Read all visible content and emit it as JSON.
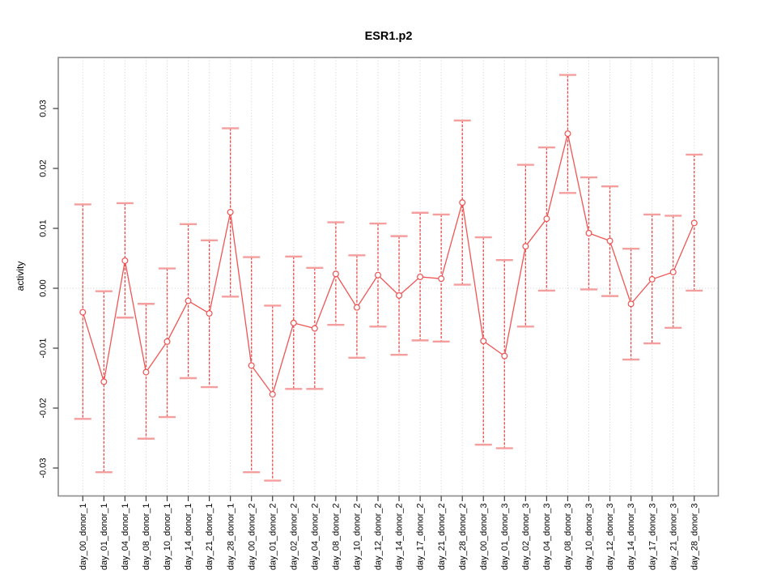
{
  "chart_data": {
    "type": "line",
    "title": "ESR1.p2",
    "xlabel": "",
    "ylabel": "activity",
    "ylim": [
      -0.0347,
      0.0385
    ],
    "grid": "vertical dotted line per category, horizontal dotted line at zero",
    "legend": "none",
    "marker": "open-circle",
    "error_bars": "dashed vertical with solid caps",
    "yticks": [
      0.03,
      0.02,
      0.01,
      0.0,
      -0.01,
      -0.02,
      -0.03
    ],
    "ytick_labels": [
      "0.03",
      "0.02",
      "0.01",
      "0.00",
      "-0.01",
      "-0.02",
      "-0.03"
    ],
    "categories": [
      "day_00_donor_1",
      "day_01_donor_1",
      "day_04_donor_1",
      "day_08_donor_1",
      "day_10_donor_1",
      "day_14_donor_1",
      "day_21_donor_1",
      "day_28_donor_1",
      "day_00_donor_2",
      "day_01_donor_2",
      "day_02_donor_2",
      "day_04_donor_2",
      "day_08_donor_2",
      "day_10_donor_2",
      "day_12_donor_2",
      "day_14_donor_2",
      "day_17_donor_2",
      "day_21_donor_2",
      "day_28_donor_2",
      "day_00_donor_3",
      "day_01_donor_3",
      "day_02_donor_3",
      "day_04_donor_3",
      "day_08_donor_3",
      "day_10_donor_3",
      "day_12_donor_3",
      "day_14_donor_3",
      "day_17_donor_3",
      "day_21_donor_3",
      "day_28_donor_3"
    ],
    "series": [
      {
        "name": "activity",
        "values": [
          -0.004,
          -0.0156,
          0.0046,
          -0.014,
          -0.0089,
          -0.0021,
          -0.0042,
          0.0127,
          -0.0129,
          -0.0177,
          -0.0058,
          -0.0067,
          0.0024,
          -0.0032,
          0.0022,
          -0.0012,
          0.0019,
          0.0016,
          0.0143,
          -0.0088,
          -0.0113,
          0.007,
          0.0116,
          0.0258,
          0.0092,
          0.0079,
          -0.0026,
          0.0015,
          0.0027,
          0.0109
        ],
        "err_high": [
          0.014,
          -0.0005,
          0.0142,
          -0.0026,
          0.0033,
          0.0107,
          0.008,
          0.0267,
          0.0052,
          -0.0029,
          0.0053,
          0.0034,
          0.011,
          0.0055,
          0.0108,
          0.0087,
          0.0126,
          0.0123,
          0.028,
          0.0085,
          0.0047,
          0.0206,
          0.0235,
          0.0356,
          0.0185,
          0.017,
          0.0066,
          0.0123,
          0.0121,
          0.0223
        ],
        "err_low": [
          -0.0218,
          -0.0307,
          -0.0049,
          -0.0251,
          -0.0215,
          -0.015,
          -0.0165,
          -0.0014,
          -0.0307,
          -0.0321,
          -0.0168,
          -0.0168,
          -0.0061,
          -0.0116,
          -0.0064,
          -0.0111,
          -0.0087,
          -0.0089,
          0.0006,
          -0.0261,
          -0.0267,
          -0.0064,
          -0.0004,
          0.0159,
          -0.0002,
          -0.0013,
          -0.0119,
          -0.0092,
          -0.0066,
          -0.0004
        ]
      }
    ],
    "colors": {
      "series_line": "#f05555",
      "error_bar_dash": "#e94c4c",
      "error_bar_cap": "#f59e9e",
      "marker_stroke": "#ef5151",
      "marker_fill": "#ffffff",
      "frame": "#8c8c8c",
      "tick": "#3a3a3a",
      "gridline": "#cfcfcf",
      "text": "#000000",
      "background": "#ffffff"
    }
  }
}
